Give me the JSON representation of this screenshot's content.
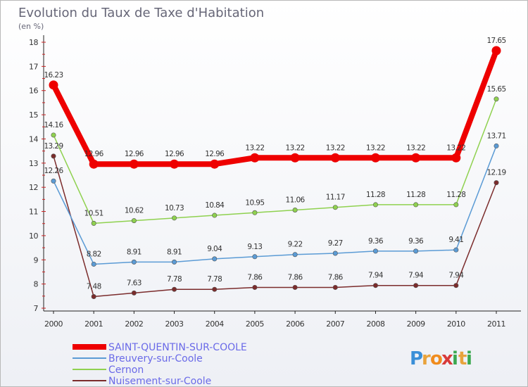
{
  "chart_data": {
    "type": "line",
    "title": "Evolution du Taux de Taxe d'Habitation",
    "subtitle": "(en %)",
    "xlabel": "",
    "ylabel": "",
    "x": [
      "2000",
      "2001",
      "2002",
      "2003",
      "2004",
      "2005",
      "2006",
      "2007",
      "2008",
      "2009",
      "2010",
      "2011"
    ],
    "ylim": [
      7,
      18
    ],
    "yticks": [
      "7",
      "8",
      "9",
      "10",
      "11",
      "12",
      "13",
      "14",
      "15",
      "16",
      "17",
      "18"
    ],
    "grid": false,
    "legend_position": "bottom-left",
    "series": [
      {
        "name": "SAINT-QUENTIN-SUR-COOLE",
        "color": "#ee0000",
        "values": [
          16.23,
          12.96,
          12.96,
          12.96,
          12.96,
          13.22,
          13.22,
          13.22,
          13.22,
          13.22,
          13.22,
          17.65
        ],
        "labels": [
          "16.23",
          "12.96",
          "12.96",
          "12.96",
          "12.96",
          "13.22",
          "13.22",
          "13.22",
          "13.22",
          "13.22",
          "13.22",
          "17.65"
        ]
      },
      {
        "name": "Breuvery-sur-Coole",
        "color": "#5b9bd5",
        "values": [
          12.26,
          8.82,
          8.91,
          8.91,
          9.04,
          9.13,
          9.22,
          9.27,
          9.36,
          9.36,
          9.41,
          13.71
        ],
        "labels": [
          "12.26",
          "8.82",
          "8.91",
          "8.91",
          "9.04",
          "9.13",
          "9.22",
          "9.27",
          "9.36",
          "9.36",
          "9.41",
          "13.71"
        ]
      },
      {
        "name": "Cernon",
        "color": "#8fd14f",
        "values": [
          14.16,
          10.51,
          10.62,
          10.73,
          10.84,
          10.95,
          11.06,
          11.17,
          11.28,
          11.28,
          11.28,
          15.65
        ],
        "labels": [
          "14.16",
          "10.51",
          "10.62",
          "10.73",
          "10.84",
          "10.95",
          "11.06",
          "11.17",
          "11.28",
          "11.28",
          "11.28",
          "15.65"
        ]
      },
      {
        "name": "Nuisement-sur-Coole",
        "color": "#7b2c2c",
        "values": [
          13.29,
          7.48,
          7.63,
          7.78,
          7.78,
          7.86,
          7.86,
          7.86,
          7.94,
          7.94,
          7.94,
          12.19
        ],
        "labels": [
          "13.29",
          "7.48",
          "7.63",
          "7.78",
          "7.78",
          "7.86",
          "7.86",
          "7.86",
          "7.94",
          "7.94",
          "7.94",
          "12.19"
        ]
      }
    ]
  },
  "logo": {
    "letters": [
      "P",
      "r",
      "o",
      "x",
      "i",
      "t",
      "i"
    ],
    "colors": [
      "#3a8fd8",
      "#e8a33c",
      "#f08c1e",
      "#d83a3a",
      "#3aa84f",
      "#e8a33c",
      "#3aa84f"
    ]
  }
}
